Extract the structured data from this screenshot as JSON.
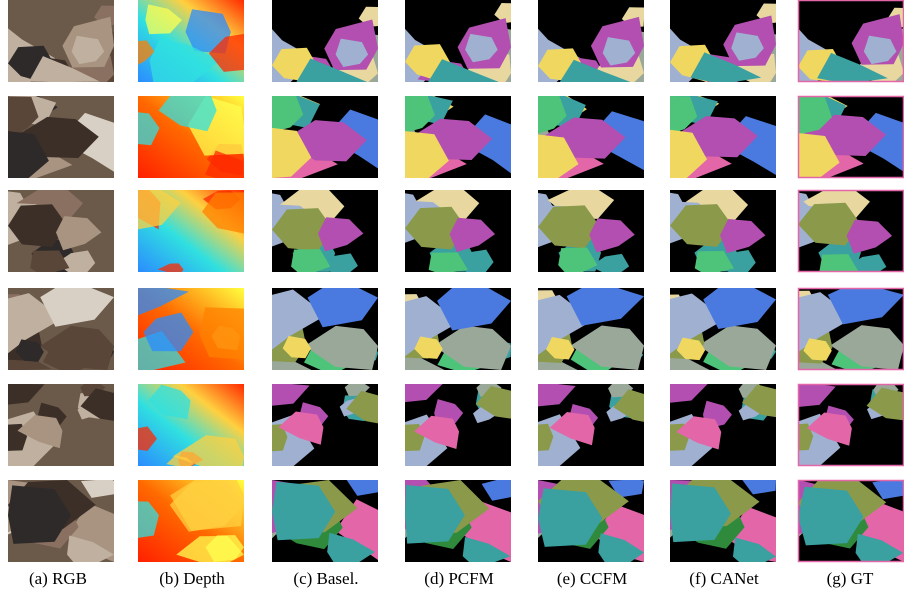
{
  "figure": {
    "captions": [
      "(a) RGB",
      "(b) Depth",
      "(c) Basel.",
      "(d) PCFM",
      "(e) CCFM",
      "(f) CANet",
      "(g) GT"
    ]
  }
}
